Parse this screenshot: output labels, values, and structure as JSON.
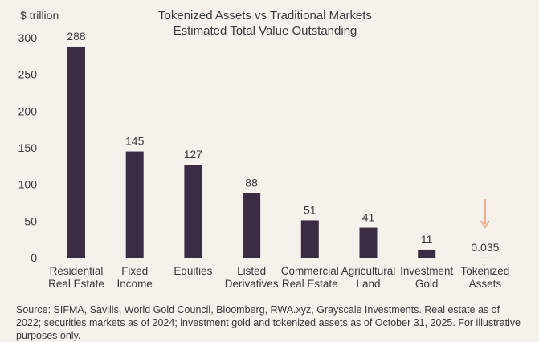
{
  "chart_data": {
    "type": "bar",
    "title": "Tokenized Assets vs Traditional Markets",
    "subtitle": "Estimated Total Value Outstanding",
    "ylabel": "$ trillion",
    "xlabel": "",
    "ylim": [
      0,
      300
    ],
    "yticks": [
      0,
      50,
      100,
      150,
      200,
      250,
      300
    ],
    "grid": false,
    "categories": [
      [
        "Residential",
        "Real Estate"
      ],
      [
        "Fixed",
        "Income"
      ],
      [
        "Equities"
      ],
      [
        "Listed",
        "Derivatives"
      ],
      [
        "Commercial",
        "Real Estate"
      ],
      [
        "Agricultural",
        "Land"
      ],
      [
        "Investment",
        "Gold"
      ],
      [
        "Tokenized",
        "Assets"
      ]
    ],
    "values": [
      288,
      145,
      127,
      88,
      51,
      41,
      11,
      0.035
    ],
    "value_labels": [
      "288",
      "145",
      "127",
      "88",
      "51",
      "41",
      "11",
      "0.035"
    ],
    "annotations": [
      {
        "type": "arrow-down",
        "category_index": 7
      }
    ],
    "bar_color": "#3a2c42",
    "arrow_color": "#f2a98a"
  },
  "source_note": "Source: SIFMA, Savills, World Gold Council, Bloomberg, RWA.xyz, Grayscale Investments. Real estate as of 2022; securities markets as of 2024; investment gold and tokenized assets as of October 31, 2025. For illustrative purposes only."
}
